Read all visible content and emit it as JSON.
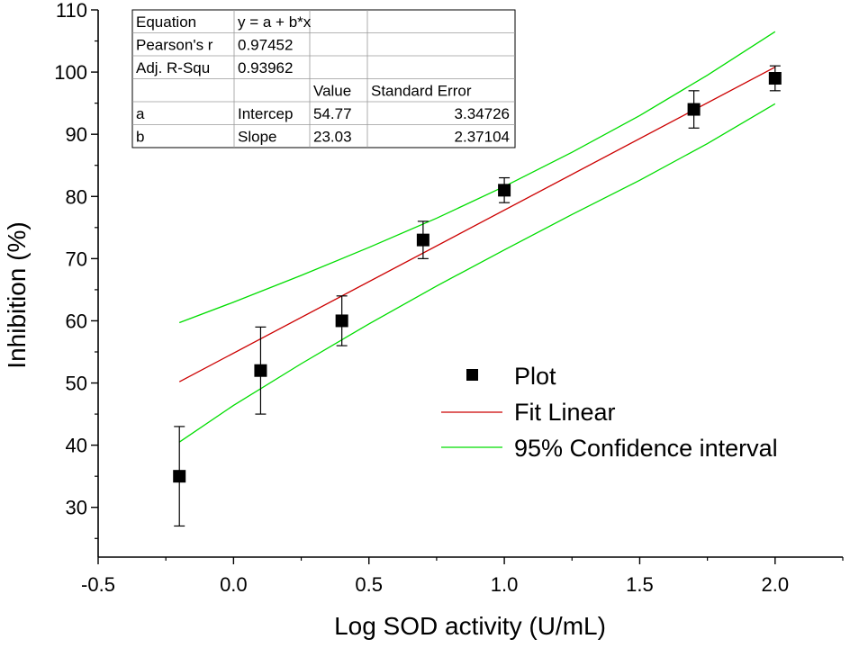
{
  "chart_data": {
    "type": "scatter",
    "xlabel": "Log SOD activity (U/mL)",
    "ylabel": "Inhibition (%)",
    "xlim": [
      -0.5,
      2.25
    ],
    "ylim": [
      22,
      110
    ],
    "x_ticks": [
      -0.5,
      0.0,
      0.5,
      1.0,
      1.5,
      2.0
    ],
    "x_tick_labels": [
      "-0.5",
      "0.0",
      "0.5",
      "1.0",
      "1.5",
      "2.0"
    ],
    "y_ticks": [
      30,
      40,
      50,
      60,
      70,
      80,
      90,
      100,
      110
    ],
    "y_tick_labels": [
      "30",
      "40",
      "50",
      "60",
      "70",
      "80",
      "90",
      "100",
      "110"
    ],
    "series": [
      {
        "name": "Plot",
        "kind": "scatter",
        "color": "#000000",
        "marker": "square",
        "x": [
          -0.2,
          0.1,
          0.4,
          0.7,
          1.0,
          1.7,
          2.0
        ],
        "y": [
          35,
          52,
          60,
          73,
          81,
          94,
          99
        ],
        "error_low": [
          8,
          7,
          4,
          3,
          2,
          3,
          2
        ],
        "error_high": [
          8,
          7,
          4,
          3,
          2,
          3,
          2
        ]
      },
      {
        "name": "Fit Linear",
        "kind": "line",
        "color": "#cc0000",
        "x": [
          -0.2,
          2.0
        ],
        "y": [
          50.2,
          100.8
        ]
      },
      {
        "name": "95% Confidence interval",
        "kind": "band",
        "color": "#00dd00",
        "x": [
          -0.2,
          0.0,
          0.25,
          0.5,
          0.75,
          1.0,
          1.25,
          1.5,
          1.75,
          2.0
        ],
        "upper": [
          59.7,
          63.0,
          67.3,
          71.8,
          76.5,
          81.6,
          87.1,
          93.0,
          99.5,
          106.5
        ],
        "lower": [
          40.5,
          46.4,
          53.1,
          59.5,
          65.6,
          71.4,
          77.1,
          82.6,
          88.5,
          94.9
        ]
      }
    ],
    "legend": {
      "position": "right-center",
      "entries": [
        "Plot",
        "Fit Linear",
        "95% Confidence interval"
      ]
    },
    "grid": false
  },
  "fit_table": {
    "rows": [
      [
        "Equation",
        "y = a + b*x",
        "",
        ""
      ],
      [
        "Pearson's r",
        "0.97452",
        "",
        ""
      ],
      [
        "Adj. R-Squ",
        "0.93962",
        "",
        ""
      ],
      [
        "",
        "",
        "Value",
        "Standard Error"
      ],
      [
        "a",
        "Intercep",
        "54.77",
        "3.34726"
      ],
      [
        "b",
        "Slope",
        "23.03",
        "2.37104"
      ]
    ]
  }
}
